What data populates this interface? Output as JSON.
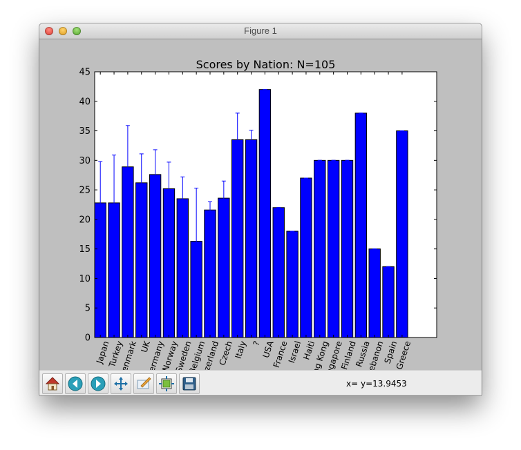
{
  "window": {
    "title": "Figure 1"
  },
  "toolbar": {
    "buttons": [
      {
        "name": "home-button",
        "icon": "home-icon"
      },
      {
        "name": "back-button",
        "icon": "back-arrow-icon"
      },
      {
        "name": "forward-button",
        "icon": "forward-arrow-icon"
      },
      {
        "name": "pan-button",
        "icon": "pan-move-icon"
      },
      {
        "name": "zoom-button",
        "icon": "zoom-rect-icon"
      },
      {
        "name": "subplots-button",
        "icon": "subplots-config-icon"
      },
      {
        "name": "save-button",
        "icon": "floppy-disk-icon"
      }
    ],
    "coord_text": "x= y=13.9453"
  },
  "chart_data": {
    "type": "bar",
    "title": "Scores by Nation: N=105",
    "xlabel": "",
    "ylabel": "",
    "ylim": [
      0,
      45
    ],
    "yticks": [
      0,
      5,
      10,
      15,
      20,
      25,
      30,
      35,
      40,
      45
    ],
    "bar_color": "#0000ff",
    "errorbar_color": "#0000ff",
    "categories": [
      "Japan",
      "Turkey",
      "Denmark",
      "UK",
      "Germany",
      "Norway",
      "Sweden",
      "Belgium",
      "Switzerland",
      "Czech",
      "Italy",
      "?",
      "USA",
      "France",
      "Israel",
      "Haiti",
      "Hong Kong",
      "Singapore",
      "Finland",
      "Russia",
      "Lebanon",
      "Spain",
      "Greece"
    ],
    "values": [
      22.8,
      22.8,
      28.9,
      26.2,
      27.6,
      25.2,
      23.5,
      16.3,
      21.6,
      23.6,
      33.5,
      33.5,
      42.0,
      22.0,
      18.0,
      27.0,
      30.0,
      30.0,
      30.0,
      38.0,
      15.0,
      12.0,
      35.0
    ],
    "errors": [
      7.0,
      8.1,
      7.0,
      4.9,
      4.2,
      4.5,
      3.7,
      9.0,
      1.4,
      2.9,
      4.5,
      1.6,
      0,
      0,
      0,
      0,
      0,
      0,
      0,
      0,
      0,
      0,
      0
    ]
  }
}
